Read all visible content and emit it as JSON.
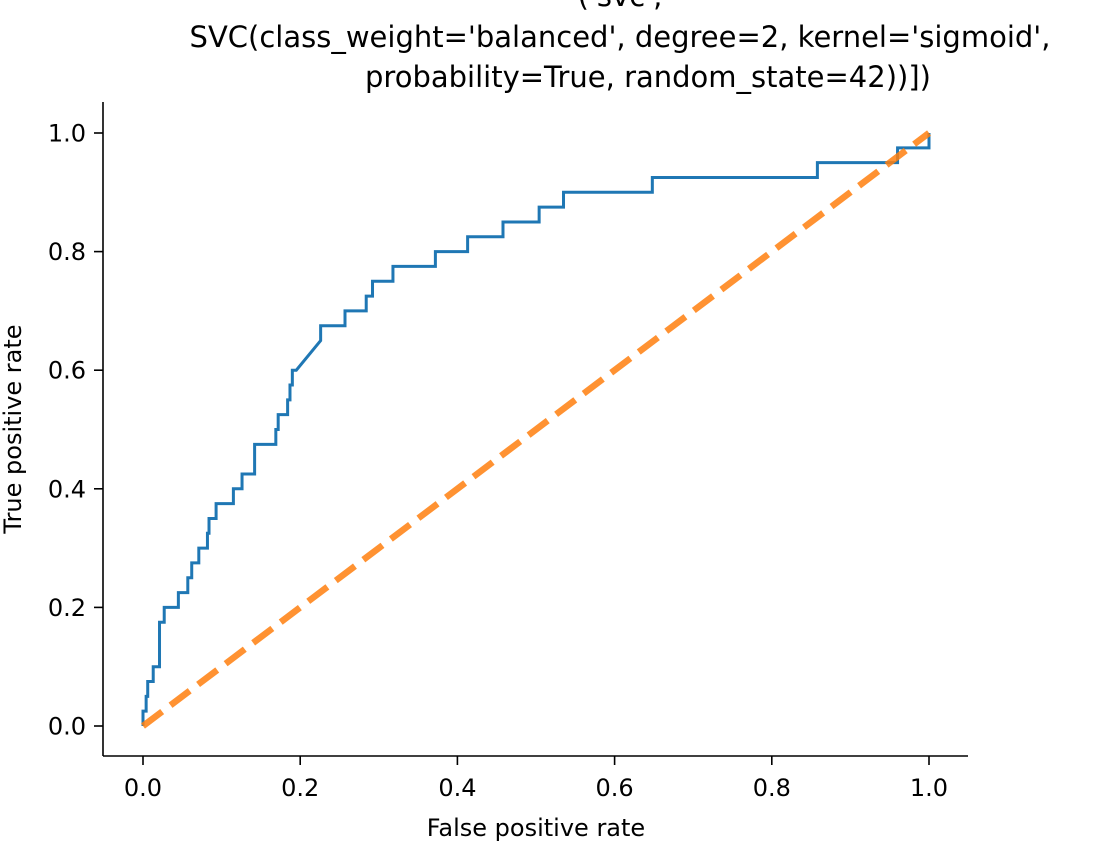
{
  "chart_data": {
    "type": "line",
    "title_lines": [
      "('svc',",
      "SVC(class_weight='balanced', degree=2, kernel='sigmoid',",
      "probability=True, random_state=42))])"
    ],
    "xlabel": "False positive rate",
    "ylabel": "True positive rate",
    "xlim": [
      -0.05,
      1.05
    ],
    "ylim": [
      -0.05,
      1.05
    ],
    "xticks": [
      0.0,
      0.2,
      0.4,
      0.6,
      0.8,
      1.0
    ],
    "xtick_labels": [
      "0.0",
      "0.2",
      "0.4",
      "0.6",
      "0.8",
      "1.0"
    ],
    "yticks": [
      0.0,
      0.2,
      0.4,
      0.6,
      0.8,
      1.0
    ],
    "ytick_labels": [
      "0.0",
      "0.2",
      "0.4",
      "0.6",
      "0.8",
      "1.0"
    ],
    "grid": false,
    "spines": "left-bottom",
    "series": [
      {
        "color": "#1f77b4",
        "style": "solid",
        "x": [
          0.0,
          0.0,
          0.004,
          0.004,
          0.006,
          0.006,
          0.008,
          0.008,
          0.013,
          0.013,
          0.021,
          0.021,
          0.027,
          0.027,
          0.045,
          0.045,
          0.057,
          0.057,
          0.058,
          0.058,
          0.062,
          0.062,
          0.071,
          0.071,
          0.082,
          0.082,
          0.084,
          0.084,
          0.093,
          0.093,
          0.115,
          0.115,
          0.126,
          0.126,
          0.142,
          0.142,
          0.169,
          0.169,
          0.172,
          0.172,
          0.184,
          0.184,
          0.187,
          0.187,
          0.19,
          0.19,
          0.195,
          0.195,
          0.226,
          0.226,
          0.257,
          0.257,
          0.284,
          0.284,
          0.292,
          0.292,
          0.318,
          0.318,
          0.372,
          0.372,
          0.413,
          0.413,
          0.458,
          0.458,
          0.504,
          0.504,
          0.535,
          0.535,
          0.648,
          0.648,
          0.858,
          0.858,
          0.96,
          0.96,
          1.0,
          1.0
        ],
        "y": [
          0.0,
          0.025,
          0.025,
          0.05,
          0.05,
          0.075,
          0.075,
          0.075,
          0.075,
          0.1,
          0.1,
          0.175,
          0.175,
          0.2,
          0.2,
          0.225,
          0.225,
          0.25,
          0.25,
          0.25,
          0.25,
          0.275,
          0.275,
          0.3,
          0.3,
          0.325,
          0.325,
          0.35,
          0.35,
          0.375,
          0.375,
          0.4,
          0.4,
          0.425,
          0.425,
          0.475,
          0.475,
          0.5,
          0.5,
          0.525,
          0.525,
          0.55,
          0.55,
          0.575,
          0.575,
          0.6,
          0.6,
          0.6,
          0.65,
          0.675,
          0.675,
          0.7,
          0.7,
          0.725,
          0.725,
          0.75,
          0.75,
          0.775,
          0.775,
          0.8,
          0.8,
          0.825,
          0.825,
          0.85,
          0.85,
          0.875,
          0.875,
          0.9,
          0.9,
          0.925,
          0.925,
          0.95,
          0.95,
          0.975,
          0.975,
          1.0
        ]
      },
      {
        "color": "#ff7f0e",
        "style": "dashed",
        "x": [
          0.0,
          1.0
        ],
        "y": [
          0.0,
          1.0
        ]
      }
    ]
  }
}
